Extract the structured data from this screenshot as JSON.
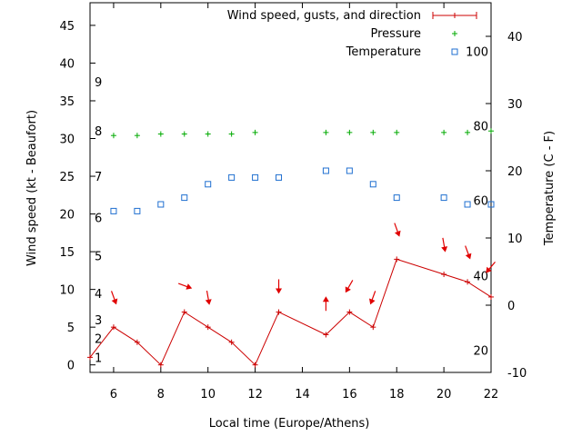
{
  "chart_data": {
    "type": "line",
    "xlabel": "Local time (Europe/Athens)",
    "ylabel": "Wind speed (kt - Beaufort)",
    "y2label": "Temperature (C - F)",
    "xlim": [
      5,
      22
    ],
    "ylim": [
      -1,
      48
    ],
    "y2lim": [
      -10,
      45
    ],
    "x_ticks": [
      6,
      8,
      10,
      12,
      14,
      16,
      18,
      20,
      22
    ],
    "y_ticks": [
      0,
      5,
      10,
      15,
      20,
      25,
      30,
      35,
      40,
      45
    ],
    "y2_ticks": [
      -10,
      0,
      10,
      20,
      30,
      40
    ],
    "beaufort_labels": [
      {
        "label": "1",
        "y": 1
      },
      {
        "label": "2",
        "y": 3.5
      },
      {
        "label": "3",
        "y": 6
      },
      {
        "label": "4",
        "y": 9.5
      },
      {
        "label": "5",
        "y": 14.5
      },
      {
        "label": "6",
        "y": 19.5
      },
      {
        "label": "7",
        "y": 25
      },
      {
        "label": "8",
        "y": 31
      },
      {
        "label": "9",
        "y": 37.5
      }
    ],
    "fahrenheit_labels": [
      {
        "label": "20",
        "y2": -6.7
      },
      {
        "label": "40",
        "y2": 4.4
      },
      {
        "label": "60",
        "y2": 15.6
      },
      {
        "label": "80",
        "y2": 26.7
      },
      {
        "label": "100",
        "y2": 37.8
      }
    ],
    "legend_position": "top-right",
    "series": [
      {
        "name": "Wind speed, gusts, and direction",
        "axis": "y",
        "color": "#cc0000",
        "x": [
          5,
          6,
          7,
          8,
          9,
          10,
          11,
          12,
          13,
          15,
          16,
          17,
          18,
          20,
          21,
          22
        ],
        "y": [
          1,
          5,
          3,
          0,
          7,
          5,
          3,
          0,
          7,
          4,
          7,
          5,
          14,
          12,
          11,
          9
        ]
      },
      {
        "name": "Pressure",
        "axis": "y",
        "color": "#00aa00",
        "x": [
          6,
          7,
          8,
          9,
          10,
          11,
          12,
          15,
          16,
          17,
          18,
          20,
          21,
          22
        ],
        "y": [
          30.4,
          30.4,
          30.6,
          30.6,
          30.6,
          30.6,
          30.8,
          30.8,
          30.8,
          30.8,
          30.8,
          30.8,
          30.8,
          31
        ]
      },
      {
        "name": "Temperature",
        "axis": "y2",
        "color": "#1f6fd0",
        "x": [
          6,
          7,
          8,
          9,
          10,
          11,
          12,
          13,
          15,
          16,
          17,
          18,
          20,
          21,
          22
        ],
        "y": [
          14,
          14,
          15,
          16,
          18,
          19,
          19,
          19,
          20,
          20,
          18,
          16,
          16,
          15,
          15
        ]
      }
    ],
    "wind_direction_arrows": [
      {
        "x": 6,
        "y": 9,
        "angle": 160
      },
      {
        "x": 9,
        "y": 10.5,
        "angle": 110
      },
      {
        "x": 10,
        "y": 9,
        "angle": 170
      },
      {
        "x": 13,
        "y": 10.5,
        "angle": 180
      },
      {
        "x": 15,
        "y": 8,
        "angle": 0
      },
      {
        "x": 16,
        "y": 10.5,
        "angle": 210
      },
      {
        "x": 17,
        "y": 9,
        "angle": 200
      },
      {
        "x": 18,
        "y": 18,
        "angle": 160
      },
      {
        "x": 20,
        "y": 16,
        "angle": 170
      },
      {
        "x": 21,
        "y": 15,
        "angle": 160
      },
      {
        "x": 22,
        "y": 13,
        "angle": 220
      }
    ]
  }
}
